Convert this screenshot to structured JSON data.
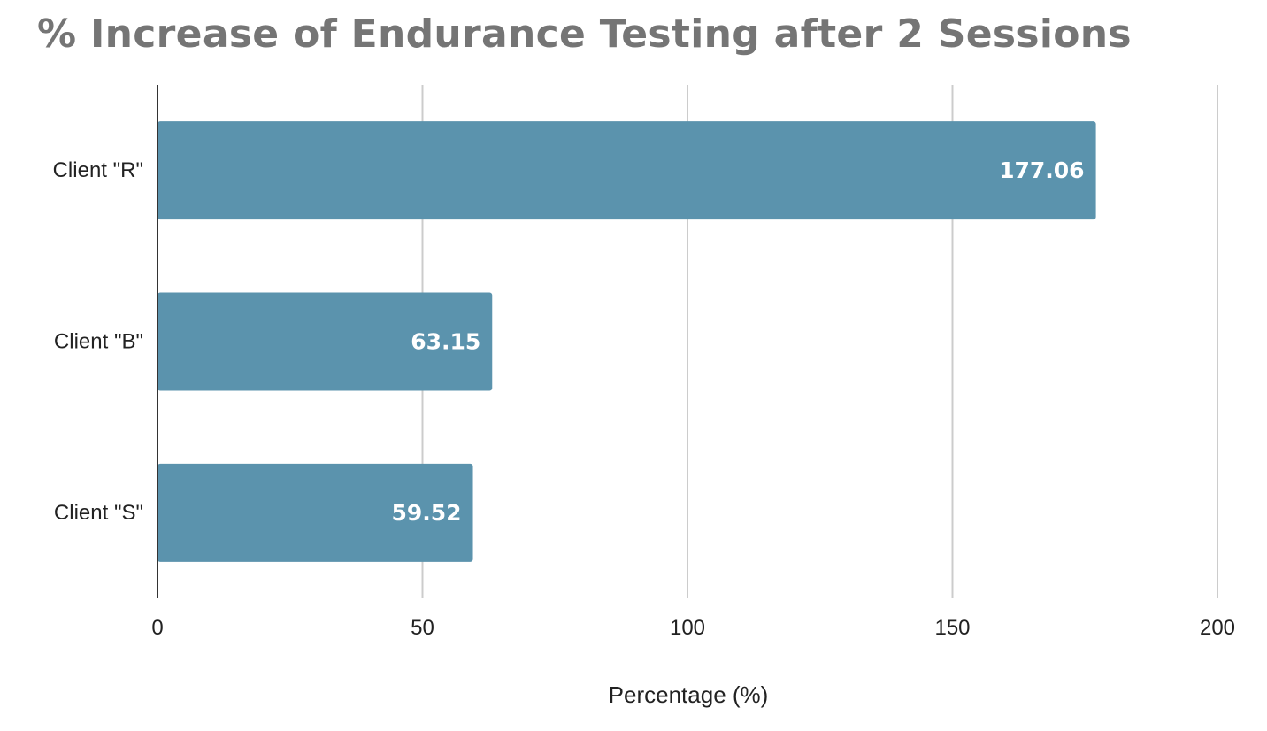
{
  "chart_data": {
    "type": "bar",
    "orientation": "horizontal",
    "title": "% Increase of Endurance Testing after 2 Sessions",
    "xlabel": "Percentage (%)",
    "ylabel": "",
    "categories": [
      "Client \"R\"",
      "Client \"B\"",
      "Client \"S\""
    ],
    "values": [
      177.06,
      63.15,
      59.52
    ],
    "data_labels": [
      "177.06",
      "63.15",
      "59.52"
    ],
    "xlim": [
      0,
      200
    ],
    "xticks": [
      0,
      50,
      100,
      150,
      200
    ],
    "xtick_labels": [
      "0",
      "50",
      "100",
      "150",
      "200"
    ],
    "grid": true,
    "legend": "none",
    "colors": {
      "bar": "#5b93ad",
      "title": "#757575",
      "grid": "#cccccc",
      "axis": "#333333",
      "data_label": "#ffffff"
    }
  }
}
